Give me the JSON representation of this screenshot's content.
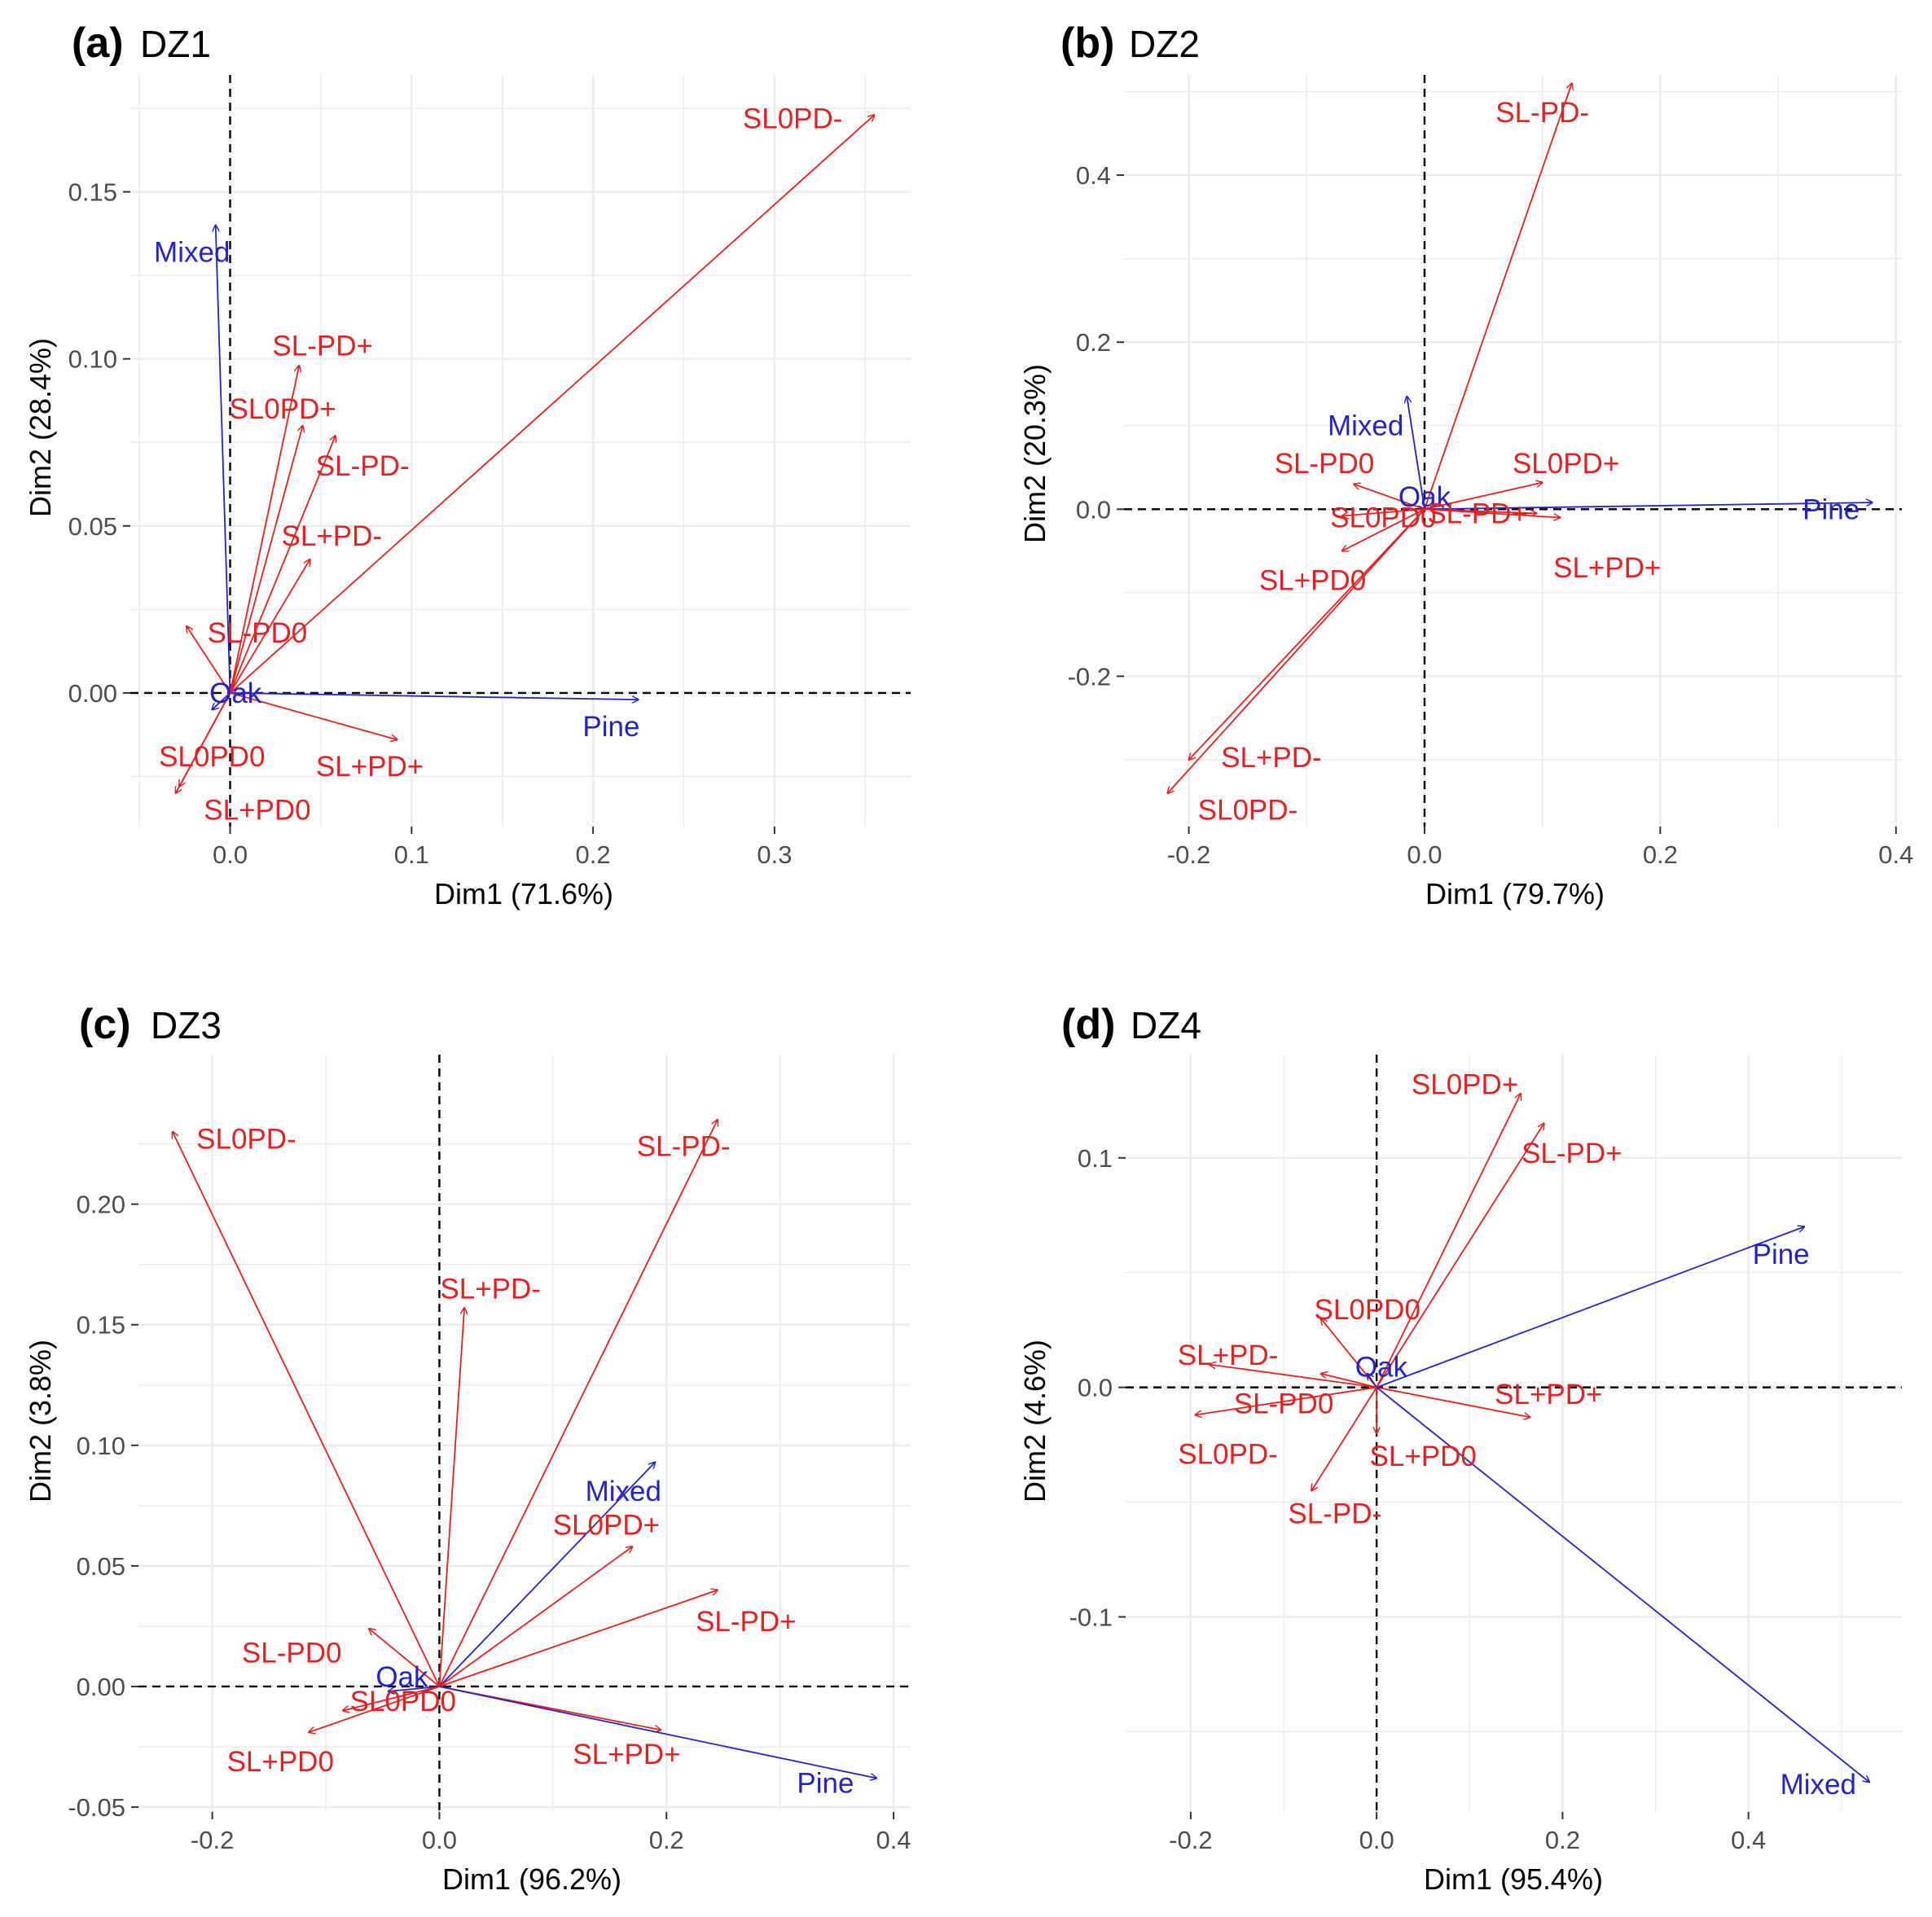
{
  "colors": {
    "species": "#2323c8",
    "treatment": "#e62020",
    "grid": "#ebebeb",
    "tick": "#4d4d4d"
  },
  "chart_data": [
    {
      "type": "biplot",
      "letter": "(a)",
      "title": "DZ1",
      "xlabel": "Dim1 (71.6%)",
      "ylabel": "Dim2 (28.4%)",
      "xlim": [
        -0.055,
        0.375
      ],
      "ylim": [
        -0.04,
        0.185
      ],
      "xticks": [
        0.0,
        0.1,
        0.2,
        0.3
      ],
      "xtick_labels": [
        "0.0",
        "0.1",
        "0.2",
        "0.3"
      ],
      "yticks": [
        0.0,
        0.05,
        0.1,
        0.15
      ],
      "ytick_labels": [
        "0.00",
        "0.05",
        "0.10",
        "0.15"
      ],
      "vectors": [
        {
          "name": "SL0PD-",
          "group": "treatment",
          "x": 0.355,
          "y": 0.173,
          "lx": 0.31,
          "ly": 0.172
        },
        {
          "name": "Mixed",
          "group": "species",
          "x": -0.008,
          "y": 0.14,
          "lx": -0.021,
          "ly": 0.132
        },
        {
          "name": "SL-PD+",
          "group": "treatment",
          "x": 0.038,
          "y": 0.098,
          "lx": 0.051,
          "ly": 0.104
        },
        {
          "name": "SL0PD+",
          "group": "treatment",
          "x": 0.04,
          "y": 0.08,
          "lx": 0.029,
          "ly": 0.085
        },
        {
          "name": "SL-PD-",
          "group": "treatment",
          "x": 0.058,
          "y": 0.077,
          "lx": 0.073,
          "ly": 0.068
        },
        {
          "name": "SL+PD-",
          "group": "treatment",
          "x": 0.044,
          "y": 0.04,
          "lx": 0.056,
          "ly": 0.047
        },
        {
          "name": "SL-PD0",
          "group": "treatment",
          "x": -0.024,
          "y": 0.02,
          "lx": 0.015,
          "ly": 0.018
        },
        {
          "name": "Oak",
          "group": "species",
          "x": -0.01,
          "y": -0.005,
          "lx": 0.003,
          "ly": 0.0
        },
        {
          "name": "Pine",
          "group": "species",
          "x": 0.225,
          "y": -0.002,
          "lx": 0.21,
          "ly": -0.01
        },
        {
          "name": "SL+PD+",
          "group": "treatment",
          "x": 0.092,
          "y": -0.014,
          "lx": 0.077,
          "ly": -0.022
        },
        {
          "name": "SL0PD0",
          "group": "treatment",
          "x": -0.03,
          "y": -0.03,
          "lx": -0.01,
          "ly": -0.019
        },
        {
          "name": "SL+PD0",
          "group": "treatment",
          "x": -0.028,
          "y": -0.028,
          "lx": 0.015,
          "ly": -0.035
        }
      ]
    },
    {
      "type": "biplot",
      "letter": "(b)",
      "title": "DZ2",
      "xlabel": "Dim1 (79.7%)",
      "ylabel": "Dim2 (20.3%)",
      "xlim": [
        -0.255,
        0.405
      ],
      "ylim": [
        -0.38,
        0.52
      ],
      "xticks": [
        -0.2,
        0.0,
        0.2,
        0.4
      ],
      "xtick_labels": [
        "-0.2",
        "0.0",
        "0.2",
        "0.4"
      ],
      "yticks": [
        -0.2,
        0.0,
        0.2,
        0.4
      ],
      "ytick_labels": [
        "-0.2",
        "0.0",
        "0.2",
        "0.4"
      ],
      "vectors": [
        {
          "name": "SL-PD-",
          "group": "treatment",
          "x": 0.125,
          "y": 0.51,
          "lx": 0.1,
          "ly": 0.475
        },
        {
          "name": "Mixed",
          "group": "species",
          "x": -0.015,
          "y": 0.135,
          "lx": -0.05,
          "ly": 0.1
        },
        {
          "name": "SL-PD0",
          "group": "treatment",
          "x": -0.06,
          "y": 0.03,
          "lx": -0.085,
          "ly": 0.055
        },
        {
          "name": "SL0PD+",
          "group": "treatment",
          "x": 0.1,
          "y": 0.032,
          "lx": 0.12,
          "ly": 0.055
        },
        {
          "name": "Oak",
          "group": "species",
          "x": 0.0,
          "y": 0.0,
          "lx": 0.0,
          "ly": 0.015
        },
        {
          "name": "Pine",
          "group": "species",
          "x": 0.38,
          "y": 0.008,
          "lx": 0.345,
          "ly": 0.0
        },
        {
          "name": "SL0PD0",
          "group": "treatment",
          "x": -0.07,
          "y": -0.008,
          "lx": -0.035,
          "ly": -0.01
        },
        {
          "name": "SL-PD+",
          "group": "treatment",
          "x": 0.095,
          "y": -0.005,
          "lx": 0.045,
          "ly": -0.005
        },
        {
          "name": "SL+PD+",
          "group": "treatment",
          "x": 0.115,
          "y": -0.01,
          "lx": 0.155,
          "ly": -0.07
        },
        {
          "name": "SL+PD0",
          "group": "treatment",
          "x": -0.07,
          "y": -0.05,
          "lx": -0.095,
          "ly": -0.085
        },
        {
          "name": "SL+PD-",
          "group": "treatment",
          "x": -0.2,
          "y": -0.3,
          "lx": -0.13,
          "ly": -0.297
        },
        {
          "name": "SL0PD-",
          "group": "treatment",
          "x": -0.218,
          "y": -0.34,
          "lx": -0.15,
          "ly": -0.36
        }
      ]
    },
    {
      "type": "biplot",
      "letter": "(c)",
      "title": "DZ3",
      "xlabel": "Dim1 (96.2%)",
      "ylabel": "Dim2 (3.8%)",
      "xlim": [
        -0.265,
        0.415
      ],
      "ylim": [
        -0.052,
        0.262
      ],
      "xticks": [
        -0.2,
        0.0,
        0.2,
        0.4
      ],
      "xtick_labels": [
        "-0.2",
        "0.0",
        "0.2",
        "0.4"
      ],
      "yticks": [
        -0.05,
        0.0,
        0.05,
        0.1,
        0.15,
        0.2
      ],
      "ytick_labels": [
        "-0.05",
        "0.00",
        "0.05",
        "0.10",
        "0.15",
        "0.20"
      ],
      "vectors": [
        {
          "name": "SL0PD-",
          "group": "treatment",
          "x": -0.235,
          "y": 0.23,
          "lx": -0.17,
          "ly": 0.227
        },
        {
          "name": "SL-PD-",
          "group": "treatment",
          "x": 0.245,
          "y": 0.235,
          "lx": 0.215,
          "ly": 0.224
        },
        {
          "name": "SL+PD-",
          "group": "treatment",
          "x": 0.022,
          "y": 0.157,
          "lx": 0.045,
          "ly": 0.165
        },
        {
          "name": "Mixed",
          "group": "species",
          "x": 0.19,
          "y": 0.093,
          "lx": 0.162,
          "ly": 0.081
        },
        {
          "name": "SL0PD+",
          "group": "treatment",
          "x": 0.17,
          "y": 0.058,
          "lx": 0.147,
          "ly": 0.067
        },
        {
          "name": "SL-PD+",
          "group": "treatment",
          "x": 0.245,
          "y": 0.04,
          "lx": 0.27,
          "ly": 0.027
        },
        {
          "name": "SL-PD0",
          "group": "treatment",
          "x": -0.062,
          "y": 0.024,
          "lx": -0.13,
          "ly": 0.014
        },
        {
          "name": "Oak",
          "group": "species",
          "x": -0.045,
          "y": -0.002,
          "lx": -0.033,
          "ly": 0.004
        },
        {
          "name": "SL0PD0",
          "group": "treatment",
          "x": -0.085,
          "y": -0.01,
          "lx": -0.032,
          "ly": -0.006
        },
        {
          "name": "SL+PD0",
          "group": "treatment",
          "x": -0.115,
          "y": -0.019,
          "lx": -0.14,
          "ly": -0.031
        },
        {
          "name": "SL+PD+",
          "group": "treatment",
          "x": 0.195,
          "y": -0.018,
          "lx": 0.165,
          "ly": -0.028
        },
        {
          "name": "Pine",
          "group": "species",
          "x": 0.385,
          "y": -0.038,
          "lx": 0.34,
          "ly": -0.04
        }
      ]
    },
    {
      "type": "biplot",
      "letter": "(d)",
      "title": "DZ4",
      "xlabel": "Dim1 (95.4%)",
      "ylabel": "Dim2 (4.6%)",
      "xlim": [
        -0.27,
        0.565
      ],
      "ylim": [
        -0.185,
        0.145
      ],
      "xticks": [
        -0.2,
        0.0,
        0.2,
        0.4
      ],
      "xtick_labels": [
        "-0.2",
        "0.0",
        "0.2",
        "0.4"
      ],
      "yticks": [
        -0.1,
        0.0,
        0.1
      ],
      "ytick_labels": [
        "-0.1",
        "0.0",
        "0.1"
      ],
      "vectors": [
        {
          "name": "SL0PD+",
          "group": "treatment",
          "x": 0.155,
          "y": 0.128,
          "lx": 0.095,
          "ly": 0.132
        },
        {
          "name": "SL-PD+",
          "group": "treatment",
          "x": 0.18,
          "y": 0.115,
          "lx": 0.21,
          "ly": 0.102
        },
        {
          "name": "Pine",
          "group": "species",
          "x": 0.46,
          "y": 0.07,
          "lx": 0.435,
          "ly": 0.058
        },
        {
          "name": "SL0PD0",
          "group": "treatment",
          "x": -0.06,
          "y": 0.03,
          "lx": -0.01,
          "ly": 0.034
        },
        {
          "name": "SL+PD-",
          "group": "treatment",
          "x": -0.18,
          "y": 0.01,
          "lx": -0.16,
          "ly": 0.014
        },
        {
          "name": "Oak",
          "group": "species",
          "x": -0.01,
          "y": 0.006,
          "lx": 0.005,
          "ly": 0.009
        },
        {
          "name": "SL-PD0",
          "group": "treatment",
          "x": -0.06,
          "y": 0.006,
          "lx": -0.1,
          "ly": -0.007
        },
        {
          "name": "SL+PD+",
          "group": "treatment",
          "x": 0.165,
          "y": -0.013,
          "lx": 0.185,
          "ly": -0.003
        },
        {
          "name": "SL0PD-",
          "group": "treatment",
          "x": -0.195,
          "y": -0.012,
          "lx": -0.16,
          "ly": -0.029
        },
        {
          "name": "SL+PD0",
          "group": "treatment",
          "x": 0.0,
          "y": -0.02,
          "lx": 0.05,
          "ly": -0.03
        },
        {
          "name": "SL-PD-",
          "group": "treatment",
          "x": -0.07,
          "y": -0.045,
          "lx": -0.045,
          "ly": -0.055
        },
        {
          "name": "Mixed",
          "group": "species",
          "x": 0.53,
          "y": -0.172,
          "lx": 0.475,
          "ly": -0.173
        }
      ]
    }
  ]
}
